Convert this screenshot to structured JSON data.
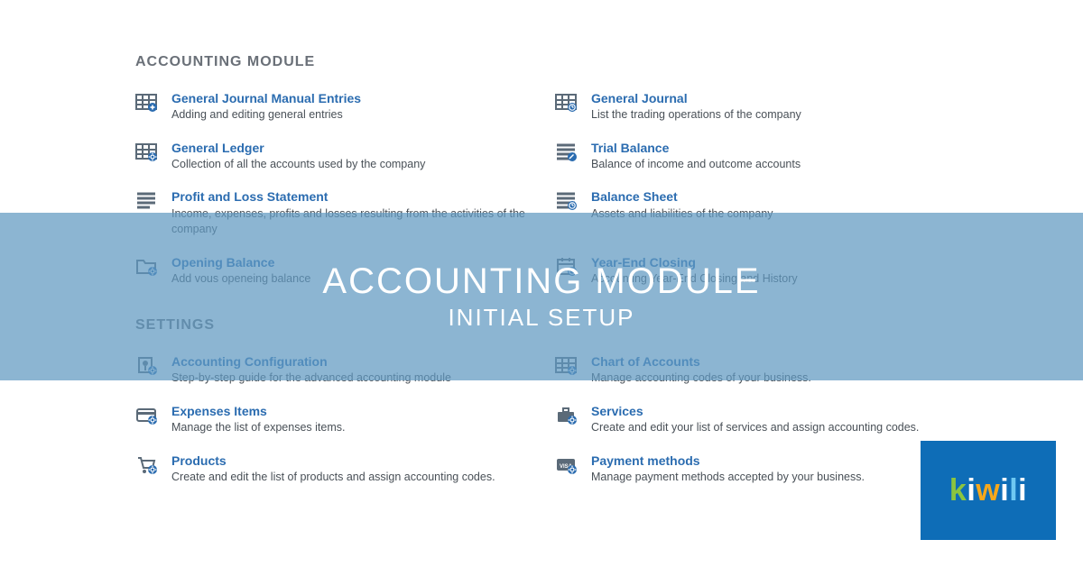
{
  "sections": {
    "accounting": {
      "heading": "ACCOUNTING MODULE",
      "items": [
        {
          "title": "General Journal Manual Entries",
          "desc": "Adding and editing general entries",
          "icon": "grid-plus"
        },
        {
          "title": "General Journal",
          "desc": "List the trading operations of the company",
          "icon": "grid-clock"
        },
        {
          "title": "General Ledger",
          "desc": "Collection of all the accounts used by the company",
          "icon": "grid-gear"
        },
        {
          "title": "Trial Balance",
          "desc": "Balance of income and outcome accounts",
          "icon": "lines-pen"
        },
        {
          "title": "Profit and Loss Statement",
          "desc": "Income, expenses, profits and losses resulting from the activities of the company",
          "icon": "lines"
        },
        {
          "title": "Balance Sheet",
          "desc": "Assets and liabilities of the company",
          "icon": "lines-clock"
        },
        {
          "title": "Opening Balance",
          "desc": "Add vous openeing balance",
          "icon": "folder"
        },
        {
          "title": "Year-End Closing",
          "desc": "Accounting Year-End Closing and History",
          "icon": "calendar"
        }
      ]
    },
    "settings": {
      "heading": "SETTINGS",
      "items": [
        {
          "title": "Accounting Configuration",
          "desc": "Step-by-step guide for the advanced accounting module",
          "icon": "wrench"
        },
        {
          "title": "Chart of Accounts",
          "desc": "Manage accounting codes of your business.",
          "icon": "grid-gear"
        },
        {
          "title": "Expenses Items",
          "desc": "Manage the list of expenses items.",
          "icon": "card"
        },
        {
          "title": "Services",
          "desc": "Create and edit your list of services and assign accounting codes.",
          "icon": "briefcase"
        },
        {
          "title": "Products",
          "desc": "Create and edit the list of products and assign accounting codes.",
          "icon": "cart"
        },
        {
          "title": "Payment methods",
          "desc": "Manage payment methods accepted by your business.",
          "icon": "visa"
        }
      ]
    }
  },
  "overlay": {
    "title": "ACCOUNTING MODULE",
    "subtitle": "INITIAL SETUP",
    "band_color": "rgba(96,152,192,0.72)"
  },
  "logo": {
    "text": "kiwili",
    "bg": "#0e6db7"
  },
  "colors": {
    "link": "#2b6cb0",
    "text": "#495057",
    "heading": "#6a7078",
    "icon": "#5b6a78",
    "accent": "#2b6cb0"
  }
}
